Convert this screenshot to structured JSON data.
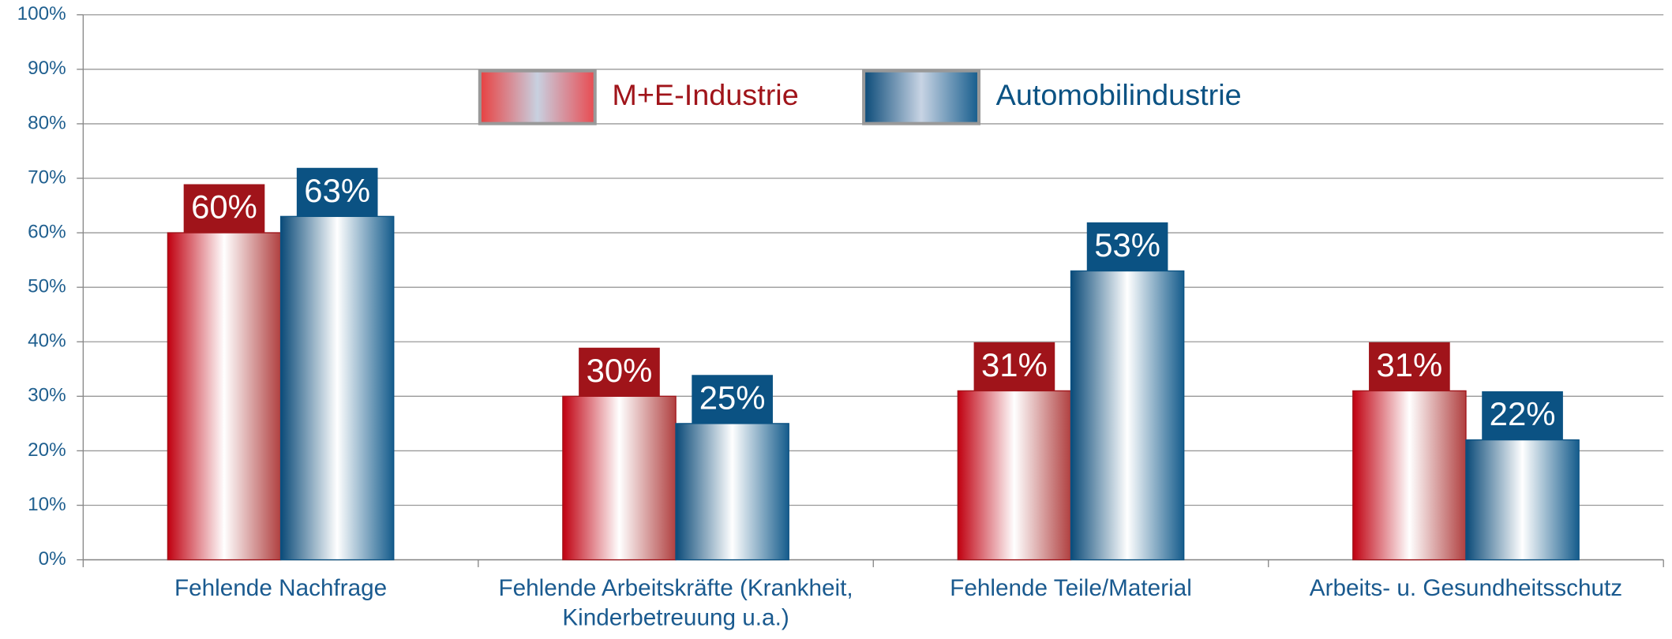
{
  "chart_data": {
    "type": "bar",
    "categories": [
      "Fehlende Nachfrage",
      "Fehlende Arbeitskräfte (Krankheit, Kinderbetreuung u.a.)",
      "Fehlende Teile/Material",
      "Arbeits- u. Gesundheitsschutz"
    ],
    "series": [
      {
        "name": "M+E-Industrie",
        "color": "#a0141a",
        "values": [
          60,
          30,
          31,
          31
        ],
        "value_labels": [
          "60%",
          "30%",
          "31%",
          "31%"
        ]
      },
      {
        "name": "Automobilindustrie",
        "color": "#0b5283",
        "values": [
          63,
          25,
          53,
          22
        ],
        "value_labels": [
          "63%",
          "25%",
          "53%",
          "22%"
        ]
      }
    ],
    "ylim": [
      0,
      100
    ],
    "yticks": [
      {
        "value": 0,
        "label": "0%"
      },
      {
        "value": 10,
        "label": "10%"
      },
      {
        "value": 20,
        "label": "20%"
      },
      {
        "value": 30,
        "label": "30%"
      },
      {
        "value": 40,
        "label": "40%"
      },
      {
        "value": 50,
        "label": "50%"
      },
      {
        "value": 60,
        "label": "60%"
      },
      {
        "value": 70,
        "label": "70%"
      },
      {
        "value": 80,
        "label": "80%"
      },
      {
        "value": 90,
        "label": "90%"
      },
      {
        "value": 100,
        "label": "100%"
      }
    ],
    "grid": true,
    "legend": "top"
  }
}
